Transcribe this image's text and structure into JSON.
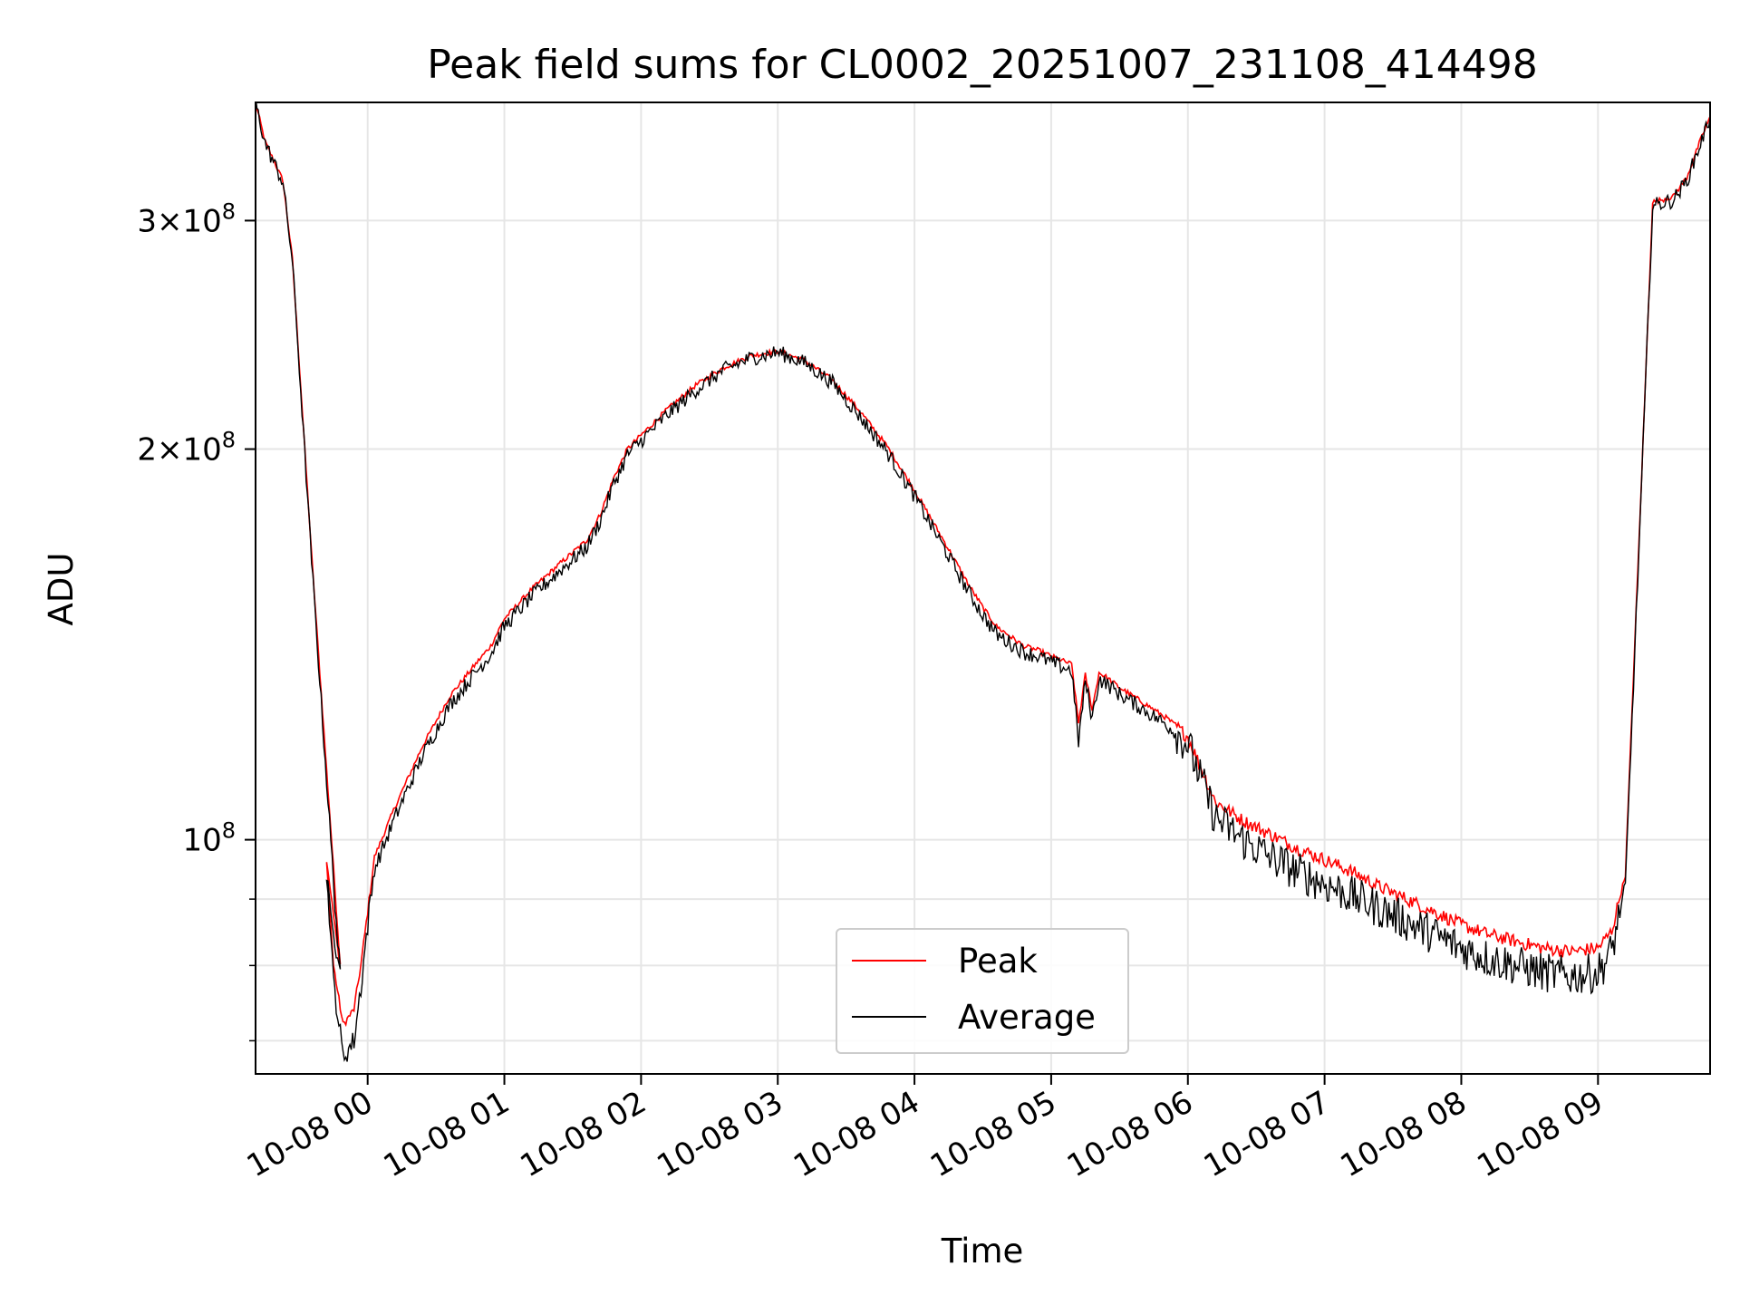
{
  "chart_data": {
    "type": "line",
    "title": "Peak field sums for CL0002_20251007_231108_414498",
    "xlabel": "Time",
    "ylabel": "ADU",
    "yscale": "log",
    "ylim": [
      66000000,
      370000000
    ],
    "xlim_hours_from_midnight": [
      -0.82,
      9.82
    ],
    "grid": true,
    "legend_location": "lower center",
    "x_ticks": [
      {
        "hour": 0,
        "label": "10-08 00"
      },
      {
        "hour": 1,
        "label": "10-08 01"
      },
      {
        "hour": 2,
        "label": "10-08 02"
      },
      {
        "hour": 3,
        "label": "10-08 03"
      },
      {
        "hour": 4,
        "label": "10-08 04"
      },
      {
        "hour": 5,
        "label": "10-08 05"
      },
      {
        "hour": 6,
        "label": "10-08 06"
      },
      {
        "hour": 7,
        "label": "10-08 07"
      },
      {
        "hour": 8,
        "label": "10-08 08"
      },
      {
        "hour": 9,
        "label": "10-08 09"
      }
    ],
    "y_major_ticks": [
      {
        "value": 100000000,
        "mantissa": "",
        "exponent": "8",
        "base": "10"
      },
      {
        "value": 200000000,
        "mantissa": "2",
        "exponent": "8",
        "base": "10"
      },
      {
        "value": 300000000,
        "mantissa": "3",
        "exponent": "8",
        "base": "10"
      }
    ],
    "y_minor_ticks": [
      70000000,
      80000000,
      90000000
    ],
    "series": [
      {
        "name": "Peak",
        "color": "#ff0000",
        "noise": 0.004,
        "x": [
          -0.82,
          -0.75,
          -0.62,
          -0.55,
          -0.4,
          -0.2,
          -0.3,
          -0.25,
          -0.18,
          -0.1,
          -0.05,
          0.0,
          0.05,
          0.2,
          0.4,
          0.6,
          0.8,
          0.9,
          1.0,
          1.2,
          1.4,
          1.6,
          1.7,
          1.8,
          1.9,
          2.0,
          2.2,
          2.4,
          2.6,
          2.8,
          3.0,
          3.2,
          3.4,
          3.6,
          3.8,
          4.0,
          4.2,
          4.4,
          4.5,
          4.6,
          4.8,
          4.9,
          5.0,
          5.15,
          5.2,
          5.25,
          5.3,
          5.35,
          5.4,
          5.5,
          5.7,
          5.85,
          6.0,
          6.2,
          6.4,
          6.6,
          6.8,
          7.0,
          7.2,
          7.4,
          7.6,
          7.8,
          8.0,
          8.2,
          8.4,
          8.6,
          8.8,
          9.0,
          9.1,
          9.2,
          9.3,
          9.4,
          9.55,
          9.65,
          9.75,
          9.82
        ],
        "y": [
          370000000,
          345000000,
          322000000,
          280000000,
          160000000,
          80000000,
          96000000,
          80000000,
          72000000,
          74000000,
          80000000,
          88000000,
          97000000,
          106000000,
          118000000,
          129000000,
          137000000,
          141000000,
          148000000,
          156000000,
          163000000,
          170000000,
          178000000,
          190000000,
          200000000,
          205000000,
          215000000,
          224000000,
          231000000,
          236000000,
          238000000,
          234000000,
          226000000,
          214000000,
          201000000,
          186000000,
          171000000,
          157000000,
          151000000,
          146000000,
          141000000,
          140000000,
          138500000,
          136500000,
          123000000,
          134000000,
          126000000,
          134500000,
          133500000,
          131000000,
          127000000,
          124000000,
          120000000,
          107000000,
          103500000,
          101000000,
          98500000,
          96500000,
          94500000,
          92000000,
          90000000,
          88000000,
          86000000,
          84500000,
          83500000,
          82500000,
          82000000,
          82500000,
          85000000,
          94000000,
          170000000,
          310000000,
          313000000,
          324000000,
          346000000,
          361000000
        ]
      },
      {
        "name": "Average",
        "color": "#000000",
        "noise": 0.012,
        "x": [
          -0.82,
          -0.75,
          -0.62,
          -0.55,
          -0.4,
          -0.2,
          -0.3,
          -0.25,
          -0.18,
          -0.1,
          -0.05,
          0.0,
          0.05,
          0.2,
          0.4,
          0.6,
          0.8,
          0.9,
          1.0,
          1.2,
          1.4,
          1.6,
          1.7,
          1.8,
          1.9,
          2.0,
          2.2,
          2.4,
          2.6,
          2.8,
          3.0,
          3.2,
          3.4,
          3.6,
          3.8,
          4.0,
          4.2,
          4.4,
          4.5,
          4.6,
          4.8,
          4.9,
          5.0,
          5.15,
          5.2,
          5.25,
          5.3,
          5.35,
          5.4,
          5.5,
          5.7,
          5.85,
          6.0,
          6.2,
          6.4,
          6.6,
          6.8,
          7.0,
          7.2,
          7.4,
          7.6,
          7.8,
          8.0,
          8.2,
          8.4,
          8.6,
          8.8,
          9.0,
          9.1,
          9.2,
          9.3,
          9.4,
          9.55,
          9.65,
          9.75,
          9.82
        ],
        "y": [
          370000000,
          344000000,
          321000000,
          279000000,
          158000000,
          78000000,
          94000000,
          78000000,
          68000000,
          70000000,
          77000000,
          86000000,
          95000000,
          104000000,
          116000000,
          127000000,
          135000000,
          139000000,
          146000000,
          154000000,
          161000000,
          168000000,
          176000000,
          188000000,
          198000000,
          203000000,
          213000000,
          222000000,
          230000000,
          235000000,
          237500000,
          233000000,
          225000000,
          212000000,
          199000000,
          184000000,
          169000000,
          155000000,
          149000000,
          144000000,
          139500000,
          138500000,
          137000000,
          135000000,
          119000000,
          132500000,
          124000000,
          133000000,
          132000000,
          129500000,
          125500000,
          122500000,
          118500000,
          104000000,
          100000000,
          97000000,
          94500000,
          92500000,
          90500000,
          88500000,
          86500000,
          84500000,
          82500000,
          81000000,
          80000000,
          79000000,
          78500000,
          79000000,
          82000000,
          92000000,
          168000000,
          308000000,
          311000000,
          322000000,
          344000000,
          360000000
        ]
      }
    ]
  }
}
